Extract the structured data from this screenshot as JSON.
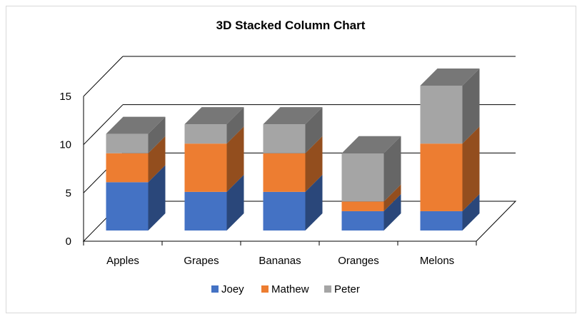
{
  "chart_data": {
    "type": "bar",
    "subtype": "3d-stacked-column",
    "title": "3D Stacked Column Chart",
    "xlabel": "",
    "ylabel": "",
    "categories": [
      "Apples",
      "Grapes",
      "Bananas",
      "Oranges",
      "Melons"
    ],
    "series": [
      {
        "name": "Joey",
        "color": "#4472c4",
        "values": [
          5,
          4,
          4,
          2,
          2
        ]
      },
      {
        "name": "Mathew",
        "color": "#ed7d31",
        "values": [
          3,
          5,
          4,
          1,
          7
        ]
      },
      {
        "name": "Peter",
        "color": "#a5a5a5",
        "values": [
          2,
          2,
          3,
          5,
          6
        ]
      }
    ],
    "ylim": [
      0,
      15
    ],
    "yticks": [
      0,
      5,
      10,
      15
    ],
    "grid": true,
    "legend": "bottom"
  }
}
